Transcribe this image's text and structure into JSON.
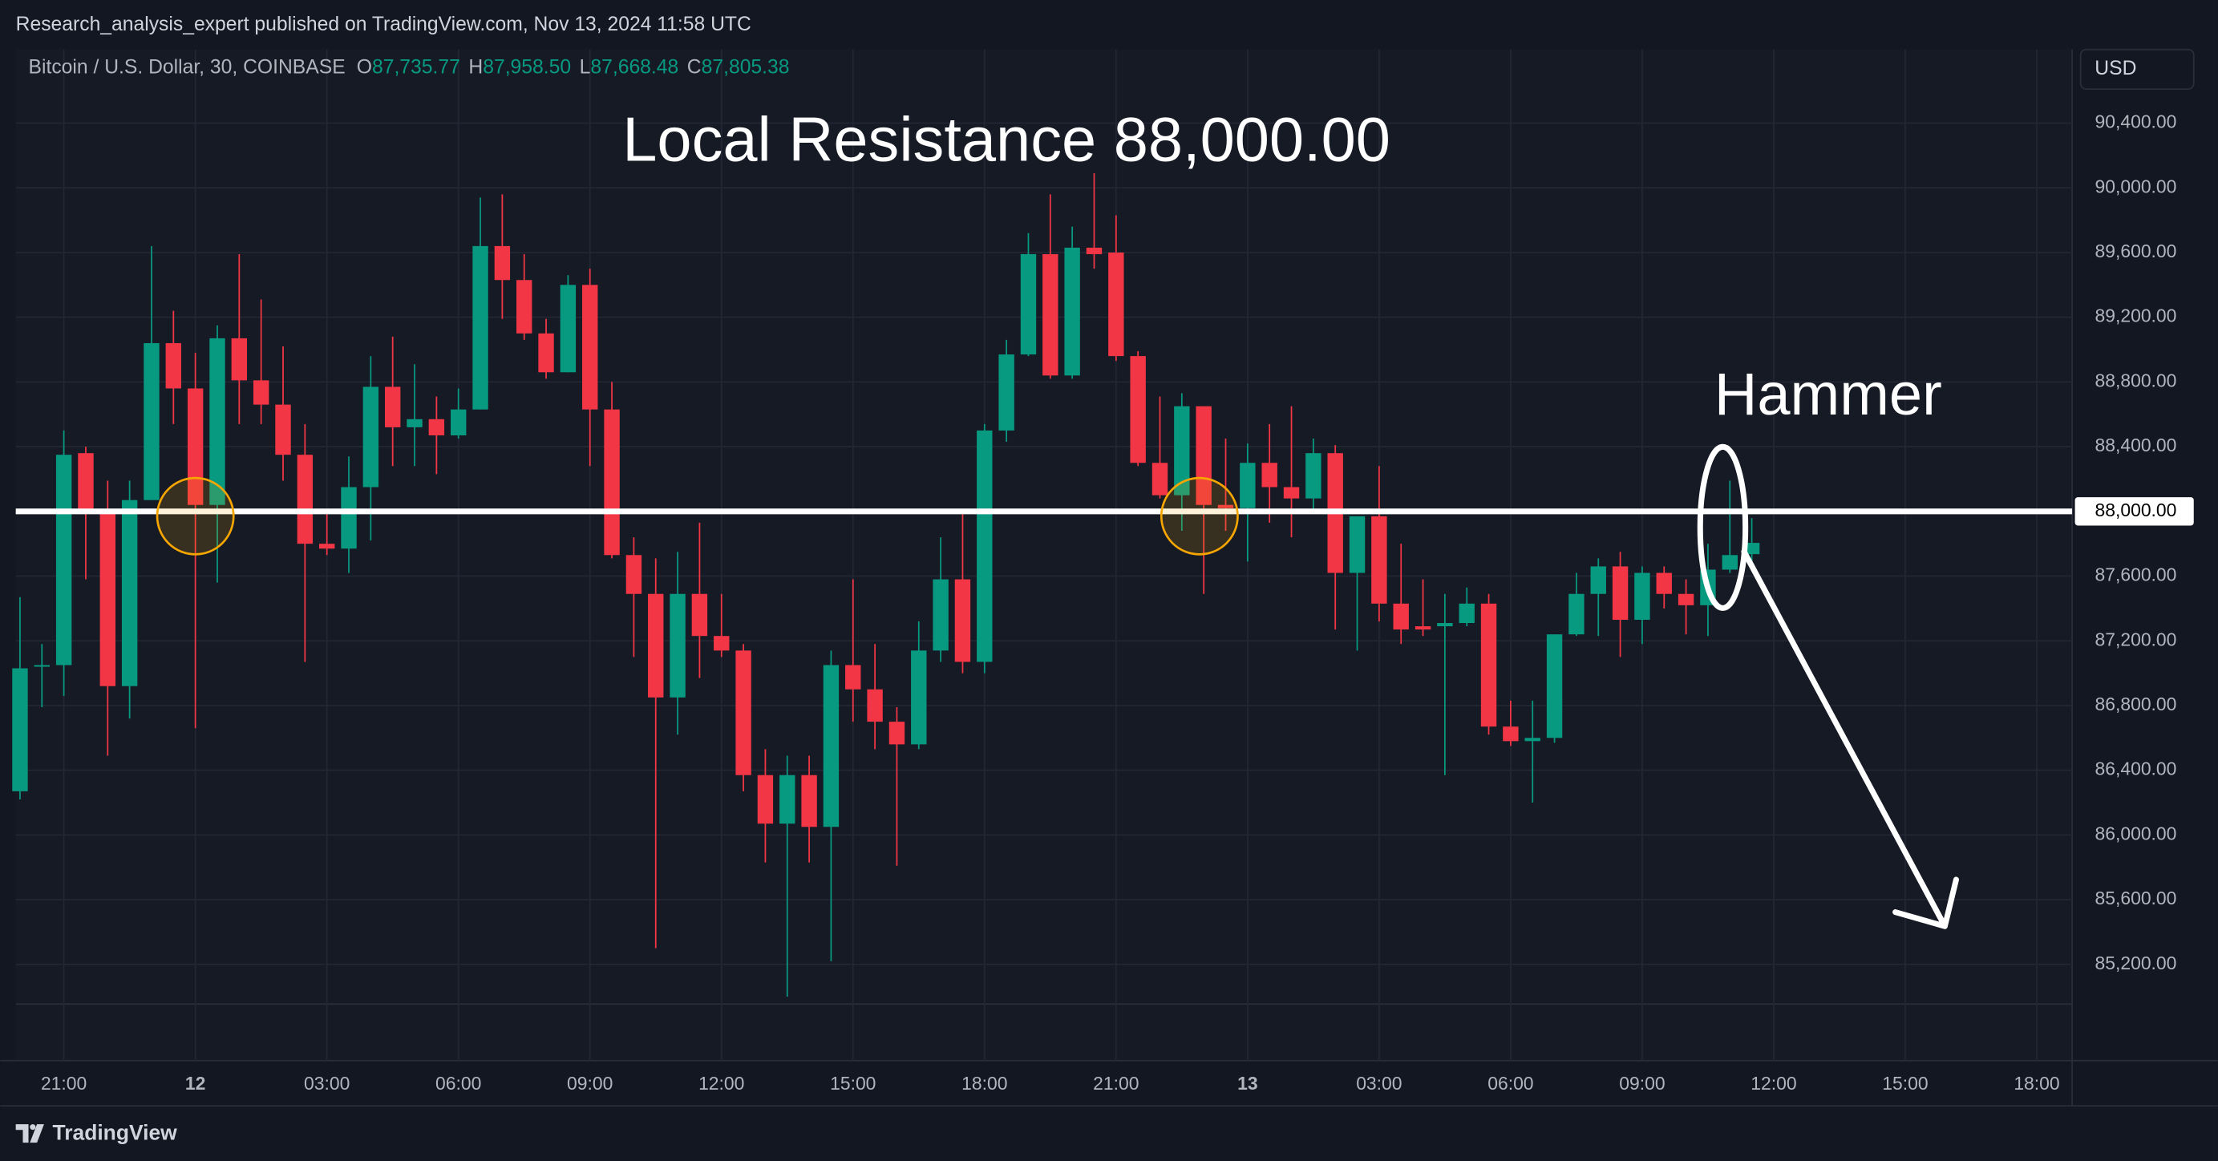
{
  "header": {
    "publisher": "Research_analysis_expert published on TradingView.com, Nov 13, 2024 11:58 UTC",
    "symbol": "Bitcoin / U.S. Dollar, 30, COINBASE",
    "legend": [
      {
        "key": "O",
        "text": "87,735.77"
      },
      {
        "key": "H",
        "text": "87,958.50"
      },
      {
        "key": "L",
        "text": "87,668.48"
      },
      {
        "key": "C",
        "text": "87,805.38"
      }
    ],
    "currency": "USD"
  },
  "chart_data": {
    "type": "candlestick",
    "title": "Local Resistance 88,000.00",
    "categories": [
      null,
      null,
      "21:00",
      null,
      null,
      null,
      null,
      null,
      "12",
      null,
      null,
      null,
      null,
      null,
      "03:00",
      null,
      null,
      null,
      null,
      null,
      "06:00",
      null,
      null,
      null,
      null,
      null,
      "09:00",
      null,
      null,
      null,
      null,
      null,
      "12:00",
      null,
      null,
      null,
      null,
      null,
      "15:00",
      null,
      null,
      null,
      null,
      null,
      "18:00",
      null,
      null,
      null,
      null,
      null,
      "21:00",
      null,
      null,
      null,
      null,
      null,
      "13",
      null,
      null,
      null,
      null,
      null,
      "03:00",
      null,
      null,
      null,
      null,
      null,
      "06:00",
      null,
      null,
      null,
      null,
      null,
      "09:00",
      null,
      null,
      null,
      null,
      null,
      "12:00",
      null,
      null,
      null,
      null,
      null,
      "15:00",
      null,
      null,
      null,
      null,
      null,
      "18:00",
      null
    ],
    "series": {
      "open": [
        86270,
        87040,
        87050,
        88360,
        88010,
        86920,
        88070,
        89040,
        88760,
        88040,
        89070,
        88810,
        88660,
        88350,
        87800,
        87770,
        88150,
        88770,
        88520,
        88570,
        88470,
        88630,
        89640,
        89430,
        89100,
        88860,
        89400,
        88630,
        87730,
        87490,
        86850,
        87490,
        87230,
        87140,
        86370,
        86070,
        86370,
        86050,
        87050,
        86900,
        86700,
        86560,
        87140,
        87580,
        87070,
        88500,
        88970,
        89590,
        88840,
        89630,
        89600,
        88960,
        88300,
        88100,
        88650,
        88040,
        88020,
        88300,
        88150,
        88080,
        88360,
        87620,
        87970,
        87430,
        87290,
        87290,
        87310,
        87430,
        86670,
        86580,
        86600,
        87240,
        87490,
        87660,
        87330,
        87620,
        87490,
        87420,
        87640,
        87735.77,
        null,
        null,
        null,
        null,
        null,
        null,
        null,
        null,
        null,
        null,
        null,
        null,
        null,
        null
      ],
      "high": [
        87470,
        87180,
        88500,
        88400,
        88190,
        88190,
        89640,
        89240,
        88980,
        89150,
        89590,
        89310,
        89020,
        88540,
        88010,
        88340,
        88960,
        89080,
        88910,
        88710,
        88760,
        89940,
        89960,
        89590,
        89190,
        89460,
        89500,
        88800,
        87840,
        87710,
        87750,
        87930,
        87490,
        87180,
        86530,
        86490,
        86490,
        87140,
        87580,
        87180,
        86790,
        87320,
        87840,
        88010,
        88540,
        89060,
        89720,
        89960,
        89760,
        90090,
        89830,
        88990,
        88710,
        88730,
        88650,
        88450,
        88420,
        88540,
        88650,
        88450,
        88410,
        87970,
        88280,
        87800,
        87580,
        87490,
        87530,
        87490,
        86830,
        86830,
        87240,
        87620,
        87710,
        87750,
        87660,
        87660,
        87580,
        87800,
        88190,
        87958.5,
        null,
        null,
        null,
        null,
        null,
        null,
        null,
        null,
        null,
        null,
        null,
        null,
        null,
        null
      ],
      "low": [
        86220,
        86790,
        86860,
        87580,
        86490,
        86720,
        88070,
        88540,
        86660,
        87560,
        88540,
        88540,
        88190,
        87070,
        87730,
        87620,
        87820,
        88280,
        88280,
        88230,
        88450,
        88630,
        89190,
        89060,
        88820,
        88860,
        88280,
        87710,
        87100,
        85300,
        86620,
        86970,
        87100,
        86270,
        85830,
        85000,
        85830,
        85220,
        86700,
        86530,
        85810,
        86530,
        87070,
        87000,
        87000,
        88430,
        88960,
        88820,
        88820,
        89500,
        88930,
        88280,
        88080,
        87880,
        87490,
        87880,
        87690,
        87930,
        87840,
        88010,
        87270,
        87140,
        87320,
        87180,
        87230,
        86370,
        87290,
        86620,
        86550,
        86200,
        86570,
        87230,
        87230,
        87100,
        87180,
        87400,
        87240,
        87230,
        87620,
        87668.48,
        null,
        null,
        null,
        null,
        null,
        null,
        null,
        null,
        null,
        null,
        null,
        null,
        null,
        null
      ],
      "close": [
        87030,
        87050,
        88350,
        88010,
        86920,
        88070,
        89040,
        88760,
        88040,
        89070,
        88810,
        88660,
        88350,
        87800,
        87770,
        88150,
        88770,
        88520,
        88570,
        88470,
        88630,
        89640,
        89430,
        89100,
        88860,
        89400,
        88630,
        87730,
        87490,
        86850,
        87490,
        87230,
        87140,
        86370,
        86070,
        86370,
        86050,
        87050,
        86900,
        86700,
        86560,
        87140,
        87580,
        87070,
        88500,
        88970,
        89590,
        88840,
        89630,
        89590,
        88960,
        88300,
        88100,
        88650,
        88040,
        88020,
        88300,
        88150,
        88080,
        88360,
        87620,
        87970,
        87430,
        87270,
        87270,
        87310,
        87430,
        86670,
        86580,
        86600,
        87240,
        87490,
        87660,
        87330,
        87620,
        87490,
        87420,
        87640,
        87730,
        87805.38,
        null,
        null,
        null,
        null,
        null,
        null,
        null,
        null,
        null,
        null,
        null,
        null,
        null,
        null
      ]
    },
    "up_color": "#089981",
    "down_color": "#f23645",
    "ylim": [
      84955,
      90855
    ],
    "yticks": [
      {
        "value": 85200,
        "label": "85,200.00"
      },
      {
        "value": 85600,
        "label": "85,600.00"
      },
      {
        "value": 86000,
        "label": "86,000.00"
      },
      {
        "value": 86400,
        "label": "86,400.00"
      },
      {
        "value": 86800,
        "label": "86,800.00"
      },
      {
        "value": 87200,
        "label": "87,200.00"
      },
      {
        "value": 87600,
        "label": "87,600.00"
      },
      {
        "value": 88000,
        "label": "88,000.00"
      },
      {
        "value": 88400,
        "label": "88,400.00"
      },
      {
        "value": 88800,
        "label": "88,800.00"
      },
      {
        "value": 89200,
        "label": "89,200.00"
      },
      {
        "value": 89600,
        "label": "89,600.00"
      },
      {
        "value": 90000,
        "label": "90,000.00"
      },
      {
        "value": 90400,
        "label": "90,400.00"
      }
    ],
    "grid": true,
    "price_line": {
      "value": 88000,
      "label": "88,000.00",
      "color": "#ffffff"
    },
    "annotation": "Hammer"
  },
  "footer": {
    "brand": "TradingView"
  }
}
